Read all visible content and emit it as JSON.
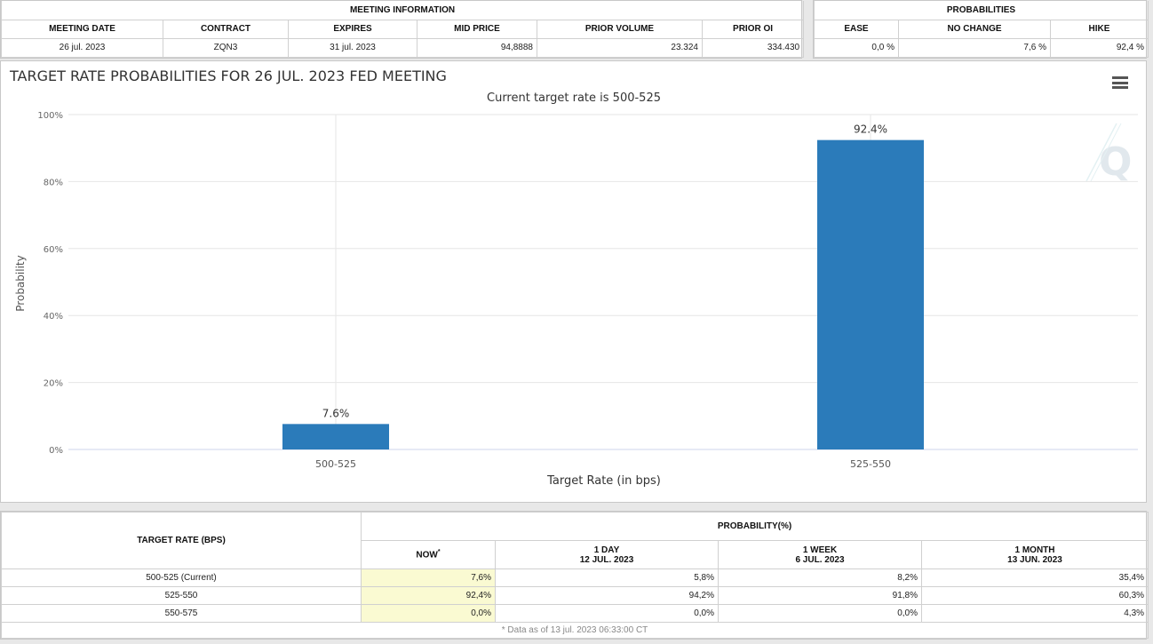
{
  "meeting_info": {
    "group_title": "MEETING INFORMATION",
    "headers": [
      "MEETING DATE",
      "CONTRACT",
      "EXPIRES",
      "MID PRICE",
      "PRIOR VOLUME",
      "PRIOR OI"
    ],
    "values": [
      "26 jul. 2023",
      "ZQN3",
      "31 jul. 2023",
      "94,8888",
      "23.324",
      "334.430"
    ]
  },
  "probabilities": {
    "group_title": "PROBABILITIES",
    "headers": [
      "EASE",
      "NO CHANGE",
      "HIKE"
    ],
    "values": [
      "0,0 %",
      "7,6 %",
      "92,4 %"
    ]
  },
  "chart_data": {
    "type": "bar",
    "title": "TARGET RATE PROBABILITIES FOR 26 JUL. 2023 FED MEETING",
    "subtitle": "Current target rate is 500-525",
    "xlabel": "Target Rate (in bps)",
    "ylabel": "Probability",
    "categories": [
      "500-525",
      "525-550"
    ],
    "values": [
      7.6,
      92.4
    ],
    "data_labels": [
      "7.6%",
      "92.4%"
    ],
    "yticks": [
      "0%",
      "20%",
      "40%",
      "60%",
      "80%",
      "100%"
    ],
    "ylim": [
      0,
      100
    ],
    "grid": true,
    "bar_color": "#2b7bba"
  },
  "history": {
    "row_header": "TARGET RATE (BPS)",
    "group_title": "PROBABILITY(%)",
    "columns": [
      {
        "label": "NOW",
        "sup": "*",
        "date": ""
      },
      {
        "label": "1 DAY",
        "date": "12 JUL. 2023"
      },
      {
        "label": "1 WEEK",
        "date": "6 JUL. 2023"
      },
      {
        "label": "1 MONTH",
        "date": "13 JUN. 2023"
      }
    ],
    "rows": [
      {
        "rate": "500-525 (Current)",
        "values": [
          "7,6%",
          "5,8%",
          "8,2%",
          "35,4%"
        ]
      },
      {
        "rate": "525-550",
        "values": [
          "92,4%",
          "94,2%",
          "91,8%",
          "60,3%"
        ]
      },
      {
        "rate": "550-575",
        "values": [
          "0,0%",
          "0,0%",
          "0,0%",
          "4,3%"
        ]
      }
    ],
    "footnote": "* Data as of 13 jul. 2023 06:33:00 CT"
  }
}
